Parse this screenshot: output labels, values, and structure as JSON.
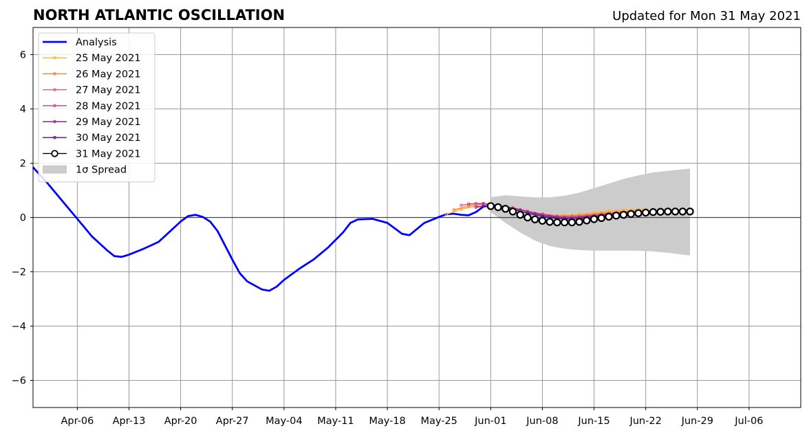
{
  "chart_data": {
    "type": "line",
    "title": "NORTH ATLANTIC OSCILLATION",
    "subtitle": "Updated for Mon 31 May 2021",
    "xlabel": "",
    "ylabel": "",
    "x_axis": {
      "type": "date",
      "range": [
        "2021-03-31",
        "2021-07-13"
      ],
      "tick_labels": [
        "Apr-06",
        "Apr-13",
        "Apr-20",
        "Apr-27",
        "May-04",
        "May-11",
        "May-18",
        "May-25",
        "Jun-01",
        "Jun-08",
        "Jun-15",
        "Jun-22",
        "Jun-29",
        "Jul-06"
      ],
      "tick_dates": [
        "2021-04-06",
        "2021-04-13",
        "2021-04-20",
        "2021-04-27",
        "2021-05-04",
        "2021-05-11",
        "2021-05-18",
        "2021-05-25",
        "2021-06-01",
        "2021-06-08",
        "2021-06-15",
        "2021-06-22",
        "2021-06-29",
        "2021-07-06"
      ]
    },
    "y_axis": {
      "range": [
        -7,
        7
      ],
      "ticks": [
        -6,
        -4,
        -2,
        0,
        2,
        4,
        6
      ],
      "tick_labels": [
        "−6",
        "−4",
        "−2",
        "0",
        "2",
        "4",
        "6"
      ]
    },
    "grid": true,
    "zero_line": true,
    "legend": {
      "position": "top-left",
      "entries": [
        "Analysis",
        "25 May 2021",
        "26 May 2021",
        "27 May 2021",
        "28 May 2021",
        "29 May 2021",
        "30 May 2021",
        "31 May 2021",
        "1σ Spread"
      ]
    },
    "colors": {
      "analysis": "#0000ff",
      "spread": "#cccccc",
      "forecast_31": "#000000",
      "grid": "#999999"
    },
    "analysis": {
      "name": "Analysis",
      "x": [
        "2021-03-31",
        "2021-04-02",
        "2021-04-04",
        "2021-04-06",
        "2021-04-08",
        "2021-04-10",
        "2021-04-11",
        "2021-04-12",
        "2021-04-13",
        "2021-04-15",
        "2021-04-17",
        "2021-04-18",
        "2021-04-20",
        "2021-04-21",
        "2021-04-22",
        "2021-04-23",
        "2021-04-24",
        "2021-04-25",
        "2021-04-27",
        "2021-04-28",
        "2021-04-29",
        "2021-05-01",
        "2021-05-02",
        "2021-05-03",
        "2021-05-04",
        "2021-05-06",
        "2021-05-08",
        "2021-05-10",
        "2021-05-12",
        "2021-05-13",
        "2021-05-14",
        "2021-05-16",
        "2021-05-18",
        "2021-05-19",
        "2021-05-20",
        "2021-05-21",
        "2021-05-23",
        "2021-05-25",
        "2021-05-26",
        "2021-05-27",
        "2021-05-28",
        "2021-05-29",
        "2021-05-30",
        "2021-05-31",
        "2021-06-01"
      ],
      "values": [
        1.85,
        1.25,
        0.6,
        -0.05,
        -0.7,
        -1.2,
        -1.42,
        -1.45,
        -1.37,
        -1.15,
        -0.9,
        -0.65,
        -0.15,
        0.05,
        0.1,
        0.02,
        -0.15,
        -0.5,
        -1.55,
        -2.05,
        -2.35,
        -2.65,
        -2.7,
        -2.55,
        -2.3,
        -1.9,
        -1.55,
        -1.1,
        -0.55,
        -0.2,
        -0.07,
        -0.05,
        -0.2,
        -0.4,
        -0.6,
        -0.65,
        -0.2,
        0.02,
        0.12,
        0.14,
        0.1,
        0.08,
        0.2,
        0.4,
        0.45
      ]
    },
    "forecasts": [
      {
        "name": "25 May 2021",
        "color": "#f9b233",
        "x": [
          "2021-05-26",
          "2021-05-28",
          "2021-05-30",
          "2021-06-01",
          "2021-06-03",
          "2021-06-05",
          "2021-06-07",
          "2021-06-09",
          "2021-06-11",
          "2021-06-13",
          "2021-06-15",
          "2021-06-17",
          "2021-06-19",
          "2021-06-21",
          "2021-06-22"
        ],
        "values": [
          0.12,
          0.3,
          0.42,
          0.45,
          0.38,
          0.28,
          0.15,
          0.08,
          0.08,
          0.12,
          0.18,
          0.24,
          0.28,
          0.3,
          0.3
        ]
      },
      {
        "name": "26 May 2021",
        "color": "#f37f2d",
        "x": [
          "2021-05-27",
          "2021-05-29",
          "2021-05-31",
          "2021-06-02",
          "2021-06-04",
          "2021-06-06",
          "2021-06-08",
          "2021-06-10",
          "2021-06-12",
          "2021-06-14",
          "2021-06-16",
          "2021-06-18",
          "2021-06-20",
          "2021-06-22"
        ],
        "values": [
          0.28,
          0.42,
          0.5,
          0.45,
          0.36,
          0.24,
          0.13,
          0.06,
          0.06,
          0.1,
          0.16,
          0.2,
          0.24,
          0.26
        ]
      },
      {
        "name": "27 May 2021",
        "color": "#e0576d",
        "x": [
          "2021-05-28",
          "2021-05-30",
          "2021-06-01",
          "2021-06-03",
          "2021-06-05",
          "2021-06-07",
          "2021-06-09",
          "2021-06-11",
          "2021-06-13",
          "2021-06-15",
          "2021-06-17",
          "2021-06-19",
          "2021-06-21",
          "2021-06-22"
        ],
        "values": [
          0.45,
          0.52,
          0.48,
          0.4,
          0.28,
          0.15,
          0.05,
          0.02,
          0.04,
          0.1,
          0.16,
          0.2,
          0.22,
          0.22
        ]
      },
      {
        "name": "28 May 2021",
        "color": "#c43b8b",
        "x": [
          "2021-05-29",
          "2021-05-31",
          "2021-06-02",
          "2021-06-04",
          "2021-06-06",
          "2021-06-08",
          "2021-06-10",
          "2021-06-12",
          "2021-06-14",
          "2021-06-16",
          "2021-06-18",
          "2021-06-20"
        ],
        "values": [
          0.5,
          0.52,
          0.45,
          0.35,
          0.22,
          0.12,
          0.04,
          0.02,
          0.05,
          0.1,
          0.15,
          0.18
        ]
      },
      {
        "name": "29 May 2021",
        "color": "#8c1f9e",
        "x": [
          "2021-05-30",
          "2021-06-01",
          "2021-06-03",
          "2021-06-05",
          "2021-06-07",
          "2021-06-09",
          "2021-06-11",
          "2021-06-13",
          "2021-06-15",
          "2021-06-17",
          "2021-06-19"
        ],
        "values": [
          0.38,
          0.45,
          0.4,
          0.28,
          0.14,
          0.04,
          -0.02,
          0.0,
          0.05,
          0.1,
          0.14
        ]
      },
      {
        "name": "30 May 2021",
        "color": "#4b0c8a",
        "x": [
          "2021-05-31",
          "2021-06-02",
          "2021-06-04",
          "2021-06-06",
          "2021-06-08",
          "2021-06-10",
          "2021-06-12",
          "2021-06-14",
          "2021-06-16",
          "2021-06-18"
        ],
        "values": [
          0.42,
          0.42,
          0.3,
          0.16,
          0.04,
          -0.04,
          -0.06,
          -0.02,
          0.04,
          0.1
        ]
      },
      {
        "name": "31 May 2021",
        "color": "#000000",
        "x": [
          "2021-06-01",
          "2021-06-02",
          "2021-06-03",
          "2021-06-04",
          "2021-06-05",
          "2021-06-06",
          "2021-06-07",
          "2021-06-08",
          "2021-06-09",
          "2021-06-10",
          "2021-06-11",
          "2021-06-12",
          "2021-06-13",
          "2021-06-14",
          "2021-06-15",
          "2021-06-16",
          "2021-06-17",
          "2021-06-18",
          "2021-06-19",
          "2021-06-20",
          "2021-06-21",
          "2021-06-22",
          "2021-06-23",
          "2021-06-24",
          "2021-06-25",
          "2021-06-26",
          "2021-06-27",
          "2021-06-28"
        ],
        "values": [
          0.42,
          0.38,
          0.32,
          0.22,
          0.1,
          0.0,
          -0.07,
          -0.12,
          -0.16,
          -0.18,
          -0.18,
          -0.18,
          -0.16,
          -0.11,
          -0.06,
          -0.02,
          0.03,
          0.07,
          0.1,
          0.13,
          0.16,
          0.18,
          0.2,
          0.21,
          0.22,
          0.22,
          0.22,
          0.22
        ]
      }
    ],
    "spread": {
      "name": "1σ Spread",
      "x": [
        "2021-06-01",
        "2021-06-03",
        "2021-06-05",
        "2021-06-07",
        "2021-06-09",
        "2021-06-11",
        "2021-06-13",
        "2021-06-15",
        "2021-06-17",
        "2021-06-19",
        "2021-06-21",
        "2021-06-23",
        "2021-06-25",
        "2021-06-28"
      ],
      "upper": [
        0.75,
        0.82,
        0.78,
        0.74,
        0.74,
        0.8,
        0.92,
        1.08,
        1.25,
        1.42,
        1.55,
        1.66,
        1.72,
        1.8
      ],
      "lower": [
        0.2,
        -0.2,
        -0.55,
        -0.85,
        -1.05,
        -1.15,
        -1.2,
        -1.22,
        -1.22,
        -1.22,
        -1.22,
        -1.25,
        -1.3,
        -1.4
      ]
    }
  }
}
